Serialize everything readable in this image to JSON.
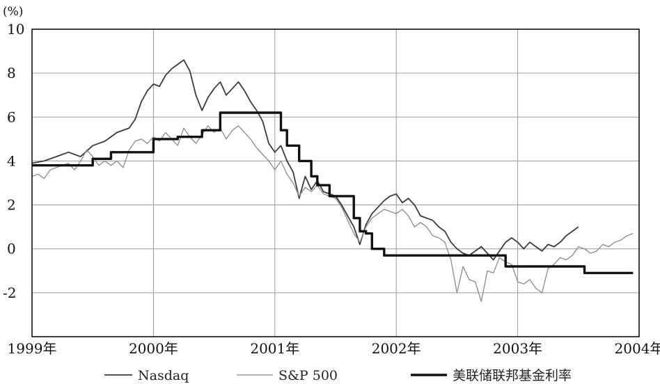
{
  "chart_data": {
    "type": "line",
    "ylabel": "(%)",
    "ylim": [
      -4,
      10
    ],
    "yticks": [
      "10",
      "8",
      "6",
      "4",
      "2",
      "0",
      "-2"
    ],
    "xlim": [
      1999.0,
      2004.0
    ],
    "xticks": [
      "1999年",
      "2000年",
      "2001年",
      "2002年",
      "2003年",
      "2004年"
    ],
    "grid": true,
    "legend_position": "bottom",
    "series": [
      {
        "name": "Nasdaq",
        "color": "#3a3a3a",
        "points": [
          [
            1999.0,
            3.9
          ],
          [
            1999.1,
            4.0
          ],
          [
            1999.2,
            4.2
          ],
          [
            1999.3,
            4.4
          ],
          [
            1999.4,
            4.2
          ],
          [
            1999.5,
            4.7
          ],
          [
            1999.6,
            4.9
          ],
          [
            1999.7,
            5.3
          ],
          [
            1999.8,
            5.5
          ],
          [
            1999.85,
            5.9
          ],
          [
            1999.9,
            6.7
          ],
          [
            1999.95,
            7.2
          ],
          [
            2000.0,
            7.5
          ],
          [
            2000.05,
            7.4
          ],
          [
            2000.1,
            7.9
          ],
          [
            2000.15,
            8.2
          ],
          [
            2000.2,
            8.4
          ],
          [
            2000.25,
            8.6
          ],
          [
            2000.3,
            8.1
          ],
          [
            2000.35,
            7.0
          ],
          [
            2000.4,
            6.3
          ],
          [
            2000.45,
            6.9
          ],
          [
            2000.5,
            7.3
          ],
          [
            2000.55,
            7.6
          ],
          [
            2000.6,
            7.0
          ],
          [
            2000.65,
            7.3
          ],
          [
            2000.7,
            7.6
          ],
          [
            2000.75,
            7.2
          ],
          [
            2000.8,
            6.7
          ],
          [
            2000.85,
            6.3
          ],
          [
            2000.9,
            5.8
          ],
          [
            2000.95,
            4.8
          ],
          [
            2001.0,
            4.4
          ],
          [
            2001.05,
            4.7
          ],
          [
            2001.1,
            4.0
          ],
          [
            2001.15,
            3.5
          ],
          [
            2001.2,
            2.3
          ],
          [
            2001.25,
            3.3
          ],
          [
            2001.3,
            2.7
          ],
          [
            2001.35,
            3.1
          ],
          [
            2001.4,
            2.6
          ],
          [
            2001.5,
            2.4
          ],
          [
            2001.55,
            2.0
          ],
          [
            2001.6,
            1.5
          ],
          [
            2001.65,
            1.0
          ],
          [
            2001.7,
            0.2
          ],
          [
            2001.75,
            1.1
          ],
          [
            2001.8,
            1.6
          ],
          [
            2001.9,
            2.2
          ],
          [
            2001.95,
            2.4
          ],
          [
            2002.0,
            2.5
          ],
          [
            2002.05,
            2.1
          ],
          [
            2002.1,
            2.3
          ],
          [
            2002.15,
            2.0
          ],
          [
            2002.2,
            1.5
          ],
          [
            2002.3,
            1.3
          ],
          [
            2002.35,
            1.0
          ],
          [
            2002.4,
            0.8
          ],
          [
            2002.45,
            0.3
          ],
          [
            2002.5,
            0.0
          ],
          [
            2002.55,
            -0.2
          ],
          [
            2002.6,
            -0.3
          ],
          [
            2002.65,
            -0.1
          ],
          [
            2002.7,
            0.1
          ],
          [
            2002.75,
            -0.2
          ],
          [
            2002.8,
            -0.5
          ],
          [
            2002.85,
            -0.1
          ],
          [
            2002.9,
            0.3
          ],
          [
            2002.95,
            0.5
          ],
          [
            2003.0,
            0.3
          ],
          [
            2003.05,
            0.0
          ],
          [
            2003.1,
            0.3
          ],
          [
            2003.15,
            0.1
          ],
          [
            2003.2,
            -0.1
          ],
          [
            2003.25,
            0.2
          ],
          [
            2003.3,
            0.1
          ],
          [
            2003.35,
            0.3
          ],
          [
            2003.4,
            0.6
          ],
          [
            2003.45,
            0.8
          ],
          [
            2003.5,
            1.0
          ]
        ]
      },
      {
        "name": "S&P 500",
        "color": "#8a8a8a",
        "points": [
          [
            1999.0,
            3.3
          ],
          [
            1999.05,
            3.4
          ],
          [
            1999.1,
            3.2
          ],
          [
            1999.15,
            3.6
          ],
          [
            1999.2,
            3.7
          ],
          [
            1999.25,
            3.8
          ],
          [
            1999.3,
            3.9
          ],
          [
            1999.35,
            3.6
          ],
          [
            1999.4,
            4.0
          ],
          [
            1999.45,
            4.5
          ],
          [
            1999.5,
            4.2
          ],
          [
            1999.55,
            3.8
          ],
          [
            1999.6,
            4.0
          ],
          [
            1999.65,
            3.8
          ],
          [
            1999.7,
            4.0
          ],
          [
            1999.75,
            3.7
          ],
          [
            1999.8,
            4.5
          ],
          [
            1999.85,
            4.9
          ],
          [
            1999.9,
            5.0
          ],
          [
            1999.95,
            4.8
          ],
          [
            2000.0,
            5.1
          ],
          [
            2000.05,
            4.9
          ],
          [
            2000.1,
            5.3
          ],
          [
            2000.15,
            5.0
          ],
          [
            2000.2,
            4.7
          ],
          [
            2000.25,
            5.5
          ],
          [
            2000.3,
            5.1
          ],
          [
            2000.35,
            4.8
          ],
          [
            2000.4,
            5.2
          ],
          [
            2000.45,
            5.6
          ],
          [
            2000.5,
            5.3
          ],
          [
            2000.55,
            5.5
          ],
          [
            2000.6,
            5.0
          ],
          [
            2000.65,
            5.4
          ],
          [
            2000.7,
            5.6
          ],
          [
            2000.75,
            5.3
          ],
          [
            2000.8,
            5.0
          ],
          [
            2000.85,
            4.6
          ],
          [
            2000.9,
            4.3
          ],
          [
            2000.95,
            4.0
          ],
          [
            2001.0,
            3.6
          ],
          [
            2001.05,
            4.0
          ],
          [
            2001.1,
            3.4
          ],
          [
            2001.15,
            3.0
          ],
          [
            2001.2,
            2.4
          ],
          [
            2001.25,
            2.8
          ],
          [
            2001.3,
            2.6
          ],
          [
            2001.35,
            2.9
          ],
          [
            2001.4,
            2.5
          ],
          [
            2001.5,
            2.3
          ],
          [
            2001.55,
            1.9
          ],
          [
            2001.6,
            1.3
          ],
          [
            2001.65,
            0.7
          ],
          [
            2001.7,
            0.3
          ],
          [
            2001.75,
            1.0
          ],
          [
            2001.8,
            1.4
          ],
          [
            2001.85,
            1.6
          ],
          [
            2001.9,
            1.8
          ],
          [
            2001.95,
            1.7
          ],
          [
            2002.0,
            1.6
          ],
          [
            2002.05,
            1.8
          ],
          [
            2002.1,
            1.5
          ],
          [
            2002.15,
            1.0
          ],
          [
            2002.2,
            1.2
          ],
          [
            2002.25,
            1.0
          ],
          [
            2002.3,
            0.6
          ],
          [
            2002.35,
            0.5
          ],
          [
            2002.4,
            0.3
          ],
          [
            2002.45,
            -0.5
          ],
          [
            2002.5,
            -2.0
          ],
          [
            2002.55,
            -0.8
          ],
          [
            2002.6,
            -1.4
          ],
          [
            2002.65,
            -1.5
          ],
          [
            2002.7,
            -2.4
          ],
          [
            2002.75,
            -1.0
          ],
          [
            2002.8,
            -1.1
          ],
          [
            2002.85,
            -0.4
          ],
          [
            2002.9,
            -0.6
          ],
          [
            2002.95,
            -0.7
          ],
          [
            2003.0,
            -1.5
          ],
          [
            2003.05,
            -1.6
          ],
          [
            2003.1,
            -1.4
          ],
          [
            2003.15,
            -1.8
          ],
          [
            2003.2,
            -2.0
          ],
          [
            2003.25,
            -0.9
          ],
          [
            2003.3,
            -0.7
          ],
          [
            2003.35,
            -0.4
          ],
          [
            2003.4,
            -0.5
          ],
          [
            2003.45,
            -0.3
          ],
          [
            2003.5,
            0.1
          ],
          [
            2003.55,
            0.0
          ],
          [
            2003.6,
            -0.2
          ],
          [
            2003.65,
            -0.1
          ],
          [
            2003.7,
            0.2
          ],
          [
            2003.75,
            0.1
          ],
          [
            2003.8,
            0.3
          ],
          [
            2003.85,
            0.4
          ],
          [
            2003.9,
            0.6
          ],
          [
            2003.95,
            0.7
          ]
        ]
      },
      {
        "name": "美联储联邦基金利率",
        "color": "#111111",
        "step": true,
        "points": [
          [
            1999.0,
            3.8
          ],
          [
            1999.5,
            4.1
          ],
          [
            1999.65,
            4.4
          ],
          [
            1999.85,
            4.4
          ],
          [
            2000.0,
            5.0
          ],
          [
            2000.2,
            5.1
          ],
          [
            2000.4,
            5.4
          ],
          [
            2000.55,
            6.2
          ],
          [
            2000.95,
            6.2
          ],
          [
            2001.05,
            5.4
          ],
          [
            2001.1,
            4.7
          ],
          [
            2001.2,
            4.0
          ],
          [
            2001.3,
            3.3
          ],
          [
            2001.35,
            2.9
          ],
          [
            2001.45,
            2.4
          ],
          [
            2001.55,
            2.4
          ],
          [
            2001.65,
            1.4
          ],
          [
            2001.7,
            0.8
          ],
          [
            2001.75,
            0.7
          ],
          [
            2001.8,
            0.0
          ],
          [
            2001.9,
            -0.3
          ],
          [
            2002.0,
            -0.3
          ],
          [
            2002.85,
            -0.3
          ],
          [
            2002.9,
            -0.8
          ],
          [
            2003.5,
            -0.8
          ],
          [
            2003.55,
            -1.1
          ],
          [
            2003.95,
            -1.1
          ]
        ]
      }
    ]
  }
}
